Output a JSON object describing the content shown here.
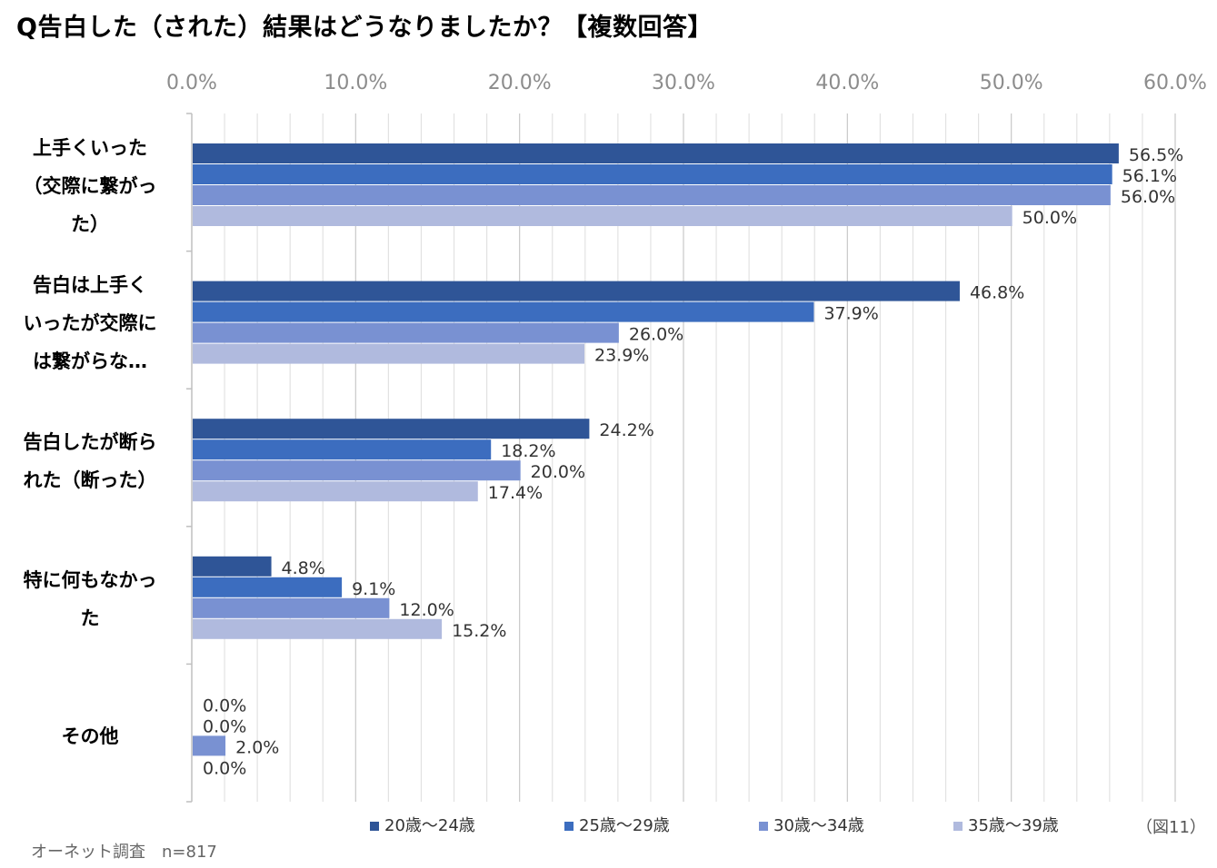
{
  "chart_data": {
    "type": "bar",
    "orientation": "horizontal",
    "title": "Q告白した（された）結果はどうなりましたか？【複数回答】",
    "categories": [
      "上手くいった（交際に繋がった）",
      "告白は上手くいったが交際には繋がらな…",
      "告白したが断られた（断った）",
      "特に何もなかった",
      "その他"
    ],
    "category_lines": [
      [
        "上手くいった",
        "（交際に繋がっ",
        "た）"
      ],
      [
        "告白は上手く",
        "いったが交際に",
        "は繋がらな…"
      ],
      [
        "告白したが断ら",
        "れた（断った）"
      ],
      [
        "特に何もなかっ",
        "た"
      ],
      [
        "その他"
      ]
    ],
    "series": [
      {
        "name": "20歳～24歳",
        "color": "#2f5597",
        "values": [
          56.5,
          46.8,
          24.2,
          4.8,
          0.0
        ],
        "labels": [
          "56.5%",
          "46.8%",
          "24.2%",
          "4.8%",
          "0.0%"
        ]
      },
      {
        "name": "25歳～29歳",
        "color": "#3c6dbf",
        "values": [
          56.1,
          37.9,
          18.2,
          9.1,
          0.0
        ],
        "labels": [
          "56.1%",
          "37.9%",
          "18.2%",
          "9.1%",
          "0.0%"
        ]
      },
      {
        "name": "30歳～34歳",
        "color": "#7991d2",
        "values": [
          56.0,
          26.0,
          20.0,
          12.0,
          2.0
        ],
        "labels": [
          "56.0%",
          "26.0%",
          "20.0%",
          "12.0%",
          "2.0%"
        ]
      },
      {
        "name": "35歳～39歳",
        "color": "#b0bade",
        "values": [
          50.0,
          23.9,
          17.4,
          15.2,
          0.0
        ],
        "labels": [
          "50.0%",
          "23.9%",
          "17.4%",
          "15.2%",
          "0.0%"
        ]
      }
    ],
    "xlim": [
      0,
      60
    ],
    "xticks": [
      "0.0%",
      "10.0%",
      "20.0%",
      "30.0%",
      "40.0%",
      "50.0%",
      "60.0%"
    ],
    "grid": true,
    "legend": "bottom"
  },
  "figure_number": "（図11）",
  "source_note": "オーネット調査　n=817"
}
